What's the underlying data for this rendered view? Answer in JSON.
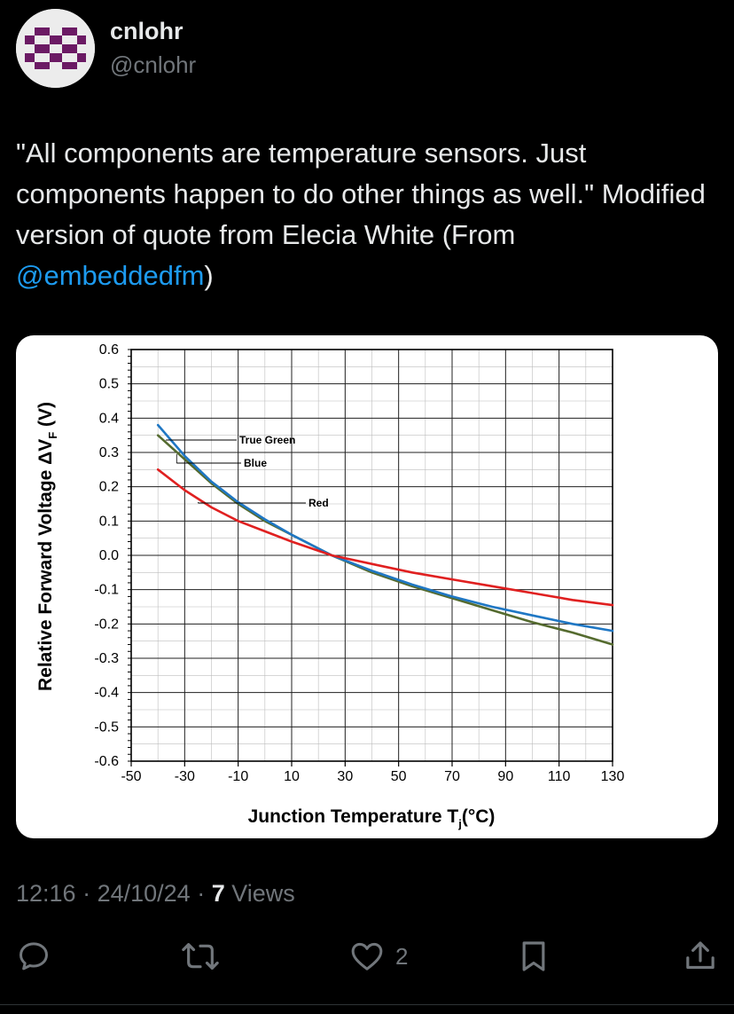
{
  "author": {
    "display_name": "cnlohr",
    "handle": "@cnlohr"
  },
  "tweet": {
    "text_parts": [
      "\"All components are temperature sensors. Just components happen to do other things as well.\" Modified version of quote from Elecia White (From ",
      "@embeddedfm",
      ")"
    ]
  },
  "meta": {
    "time": "12:16",
    "sep1": " · ",
    "date": "24/10/24",
    "sep2": " · ",
    "view_count": "7",
    "views_label": " Views"
  },
  "actions": {
    "reply": {
      "icon": "reply-icon",
      "count": ""
    },
    "repost": {
      "icon": "repost-icon",
      "count": ""
    },
    "like": {
      "icon": "heart-icon",
      "count": "2"
    },
    "bookmark": {
      "icon": "bookmark-icon",
      "count": ""
    },
    "share": {
      "icon": "share-icon",
      "count": ""
    }
  },
  "colors": {
    "background": "#000000",
    "text": "#e7e9ea",
    "secondary": "#71767b",
    "link": "#1d9bf0"
  },
  "chart_data": {
    "type": "line",
    "xlabel": "Junction Temperature T",
    "xlabel_sub": "j",
    "xlabel_unit": "(°C)",
    "ylabel": "Relative Forward Voltage ΔV",
    "ylabel_sub": "F",
    "ylabel_unit": " (V)",
    "xlim": [
      -50,
      130
    ],
    "ylim": [
      -0.6,
      0.6
    ],
    "xticks": [
      -50,
      -30,
      -10,
      10,
      30,
      50,
      70,
      90,
      110,
      130
    ],
    "yticks": [
      0.6,
      0.5,
      0.4,
      0.3,
      0.2,
      0.1,
      0.0,
      -0.1,
      -0.2,
      -0.3,
      -0.4,
      -0.5,
      -0.6
    ],
    "ytick_labels": [
      "0.6",
      "0.5",
      "0.4",
      "0.3",
      "0.2",
      "0.1",
      "0.0",
      "-0.1",
      "-0.2",
      "-0.3",
      "-0.4",
      "-0.5",
      "-0.6"
    ],
    "grid": true,
    "series": [
      {
        "name": "True Green",
        "color": "#556b2f",
        "x": [
          -40,
          -30,
          -20,
          -10,
          0,
          10,
          25,
          40,
          55,
          70,
          85,
          100,
          115,
          130
        ],
        "y": [
          0.35,
          0.28,
          0.21,
          0.15,
          0.1,
          0.06,
          0.0,
          -0.05,
          -0.09,
          -0.125,
          -0.16,
          -0.195,
          -0.225,
          -0.26
        ]
      },
      {
        "name": "Blue",
        "color": "#1f77c4",
        "x": [
          -40,
          -30,
          -20,
          -10,
          0,
          10,
          25,
          40,
          55,
          70,
          85,
          100,
          115,
          130
        ],
        "y": [
          0.38,
          0.29,
          0.215,
          0.155,
          0.105,
          0.06,
          0.0,
          -0.045,
          -0.085,
          -0.12,
          -0.15,
          -0.175,
          -0.2,
          -0.22
        ]
      },
      {
        "name": "Red",
        "color": "#e02020",
        "x": [
          -40,
          -30,
          -20,
          -10,
          0,
          10,
          25,
          40,
          55,
          70,
          85,
          100,
          115,
          130
        ],
        "y": [
          0.25,
          0.19,
          0.14,
          0.1,
          0.07,
          0.04,
          0.0,
          -0.025,
          -0.05,
          -0.07,
          -0.09,
          -0.11,
          -0.13,
          -0.145
        ]
      }
    ]
  }
}
